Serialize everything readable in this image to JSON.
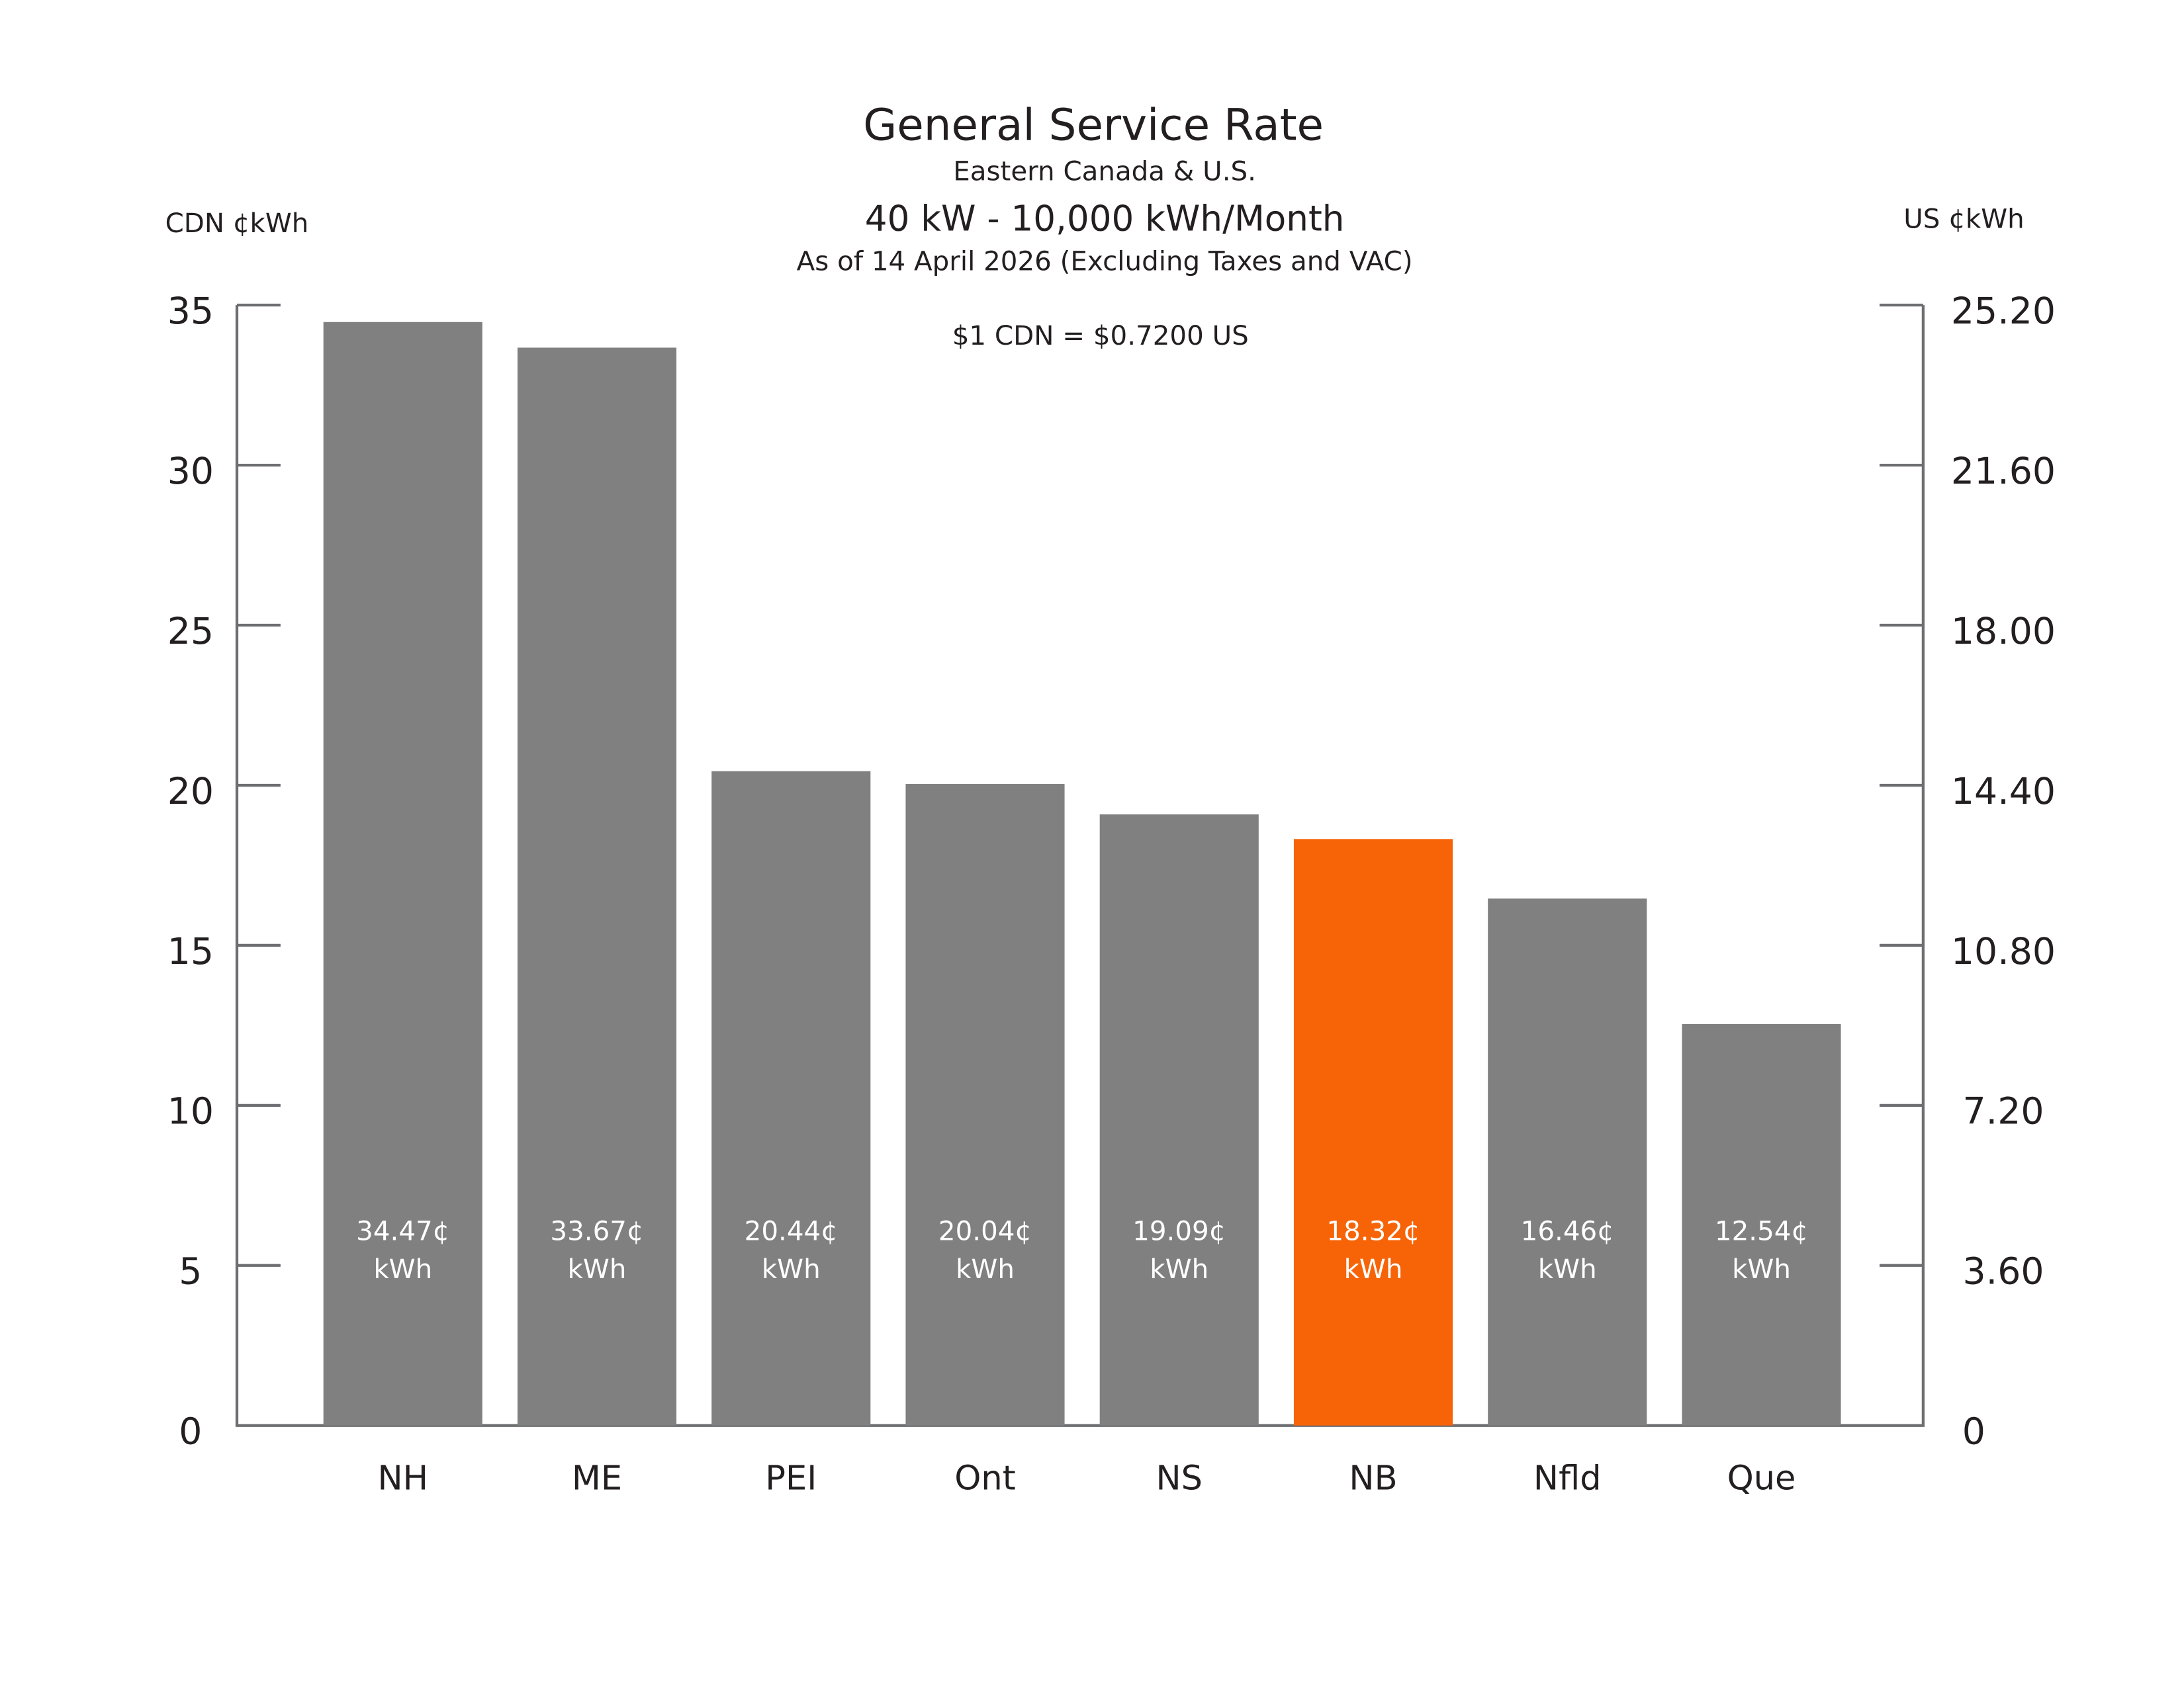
{
  "chart_data": {
    "type": "bar",
    "title": "General Service Rate",
    "subtitle": "Eastern Canada & U.S.",
    "headline": "40 kW - 10,000 kWh/Month",
    "date_note": "As of 14 April 2026 (Excluding Taxes and VAC)",
    "annotation": "$1 CDN = $0.7200 US",
    "y_label": "CDN ¢kWh",
    "y2_label": "US ¢kWh",
    "categories": [
      "NH",
      "ME",
      "PEI",
      "Ont",
      "NS",
      "NB",
      "Nfld",
      "Que"
    ],
    "values": [
      34.47,
      33.67,
      20.44,
      20.04,
      19.09,
      18.32,
      16.46,
      12.54
    ],
    "value_labels": [
      "34.47¢ kWh",
      "33.67¢ kWh",
      "20.44¢ kWh",
      "20.04¢ kWh",
      "19.09¢ kWh",
      "18.32¢ kWh",
      "16.46¢ kWh",
      "12.54¢ kWh"
    ],
    "colors": [
      "#808080",
      "#808080",
      "#808080",
      "#808080",
      "#808080",
      "#f76408",
      "#808080",
      "#808080"
    ],
    "ylim": [
      0,
      35
    ],
    "yticks": [
      0,
      5,
      10,
      15,
      20,
      25,
      30,
      35
    ],
    "y2lim": [
      0,
      25.2
    ],
    "y2ticks": [
      0,
      {
        "value": 3.6,
        "label": "3.60"
      },
      {
        "value": 7.2,
        "label": "7.20"
      },
      {
        "value": 10.8,
        "label": "10.80"
      },
      {
        "value": 14.4,
        "label": "14.40"
      },
      {
        "value": 18,
        "label": "18.00"
      },
      {
        "value": 21.6,
        "label": "21.60"
      },
      {
        "value": 25.2,
        "label": "25.20"
      }
    ],
    "grid": false
  }
}
